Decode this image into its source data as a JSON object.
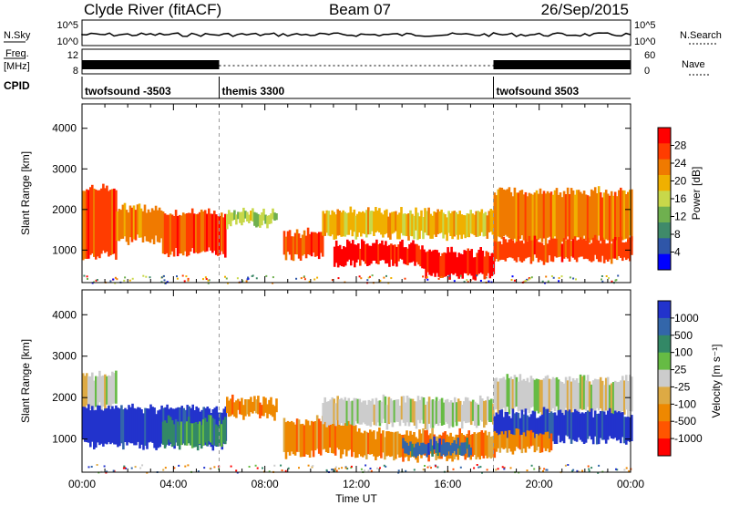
{
  "header": {
    "station": "Clyde River (fitACF)",
    "beam": "Beam 07",
    "date": "26/Sep/2015"
  },
  "status_panels": {
    "nsky_label": "N.Sky",
    "freq_label_top": "Freq.",
    "freq_label_unit": "[MHz]",
    "cpid_label": "CPID",
    "nsearch_label": "N.Search",
    "nave_label": "Nave",
    "noise_ticks": [
      "10^5",
      "10^0"
    ],
    "freq_ticks": [
      "12",
      "8"
    ],
    "nave_ticks": [
      "60",
      "0"
    ],
    "cpid_segments": [
      {
        "name": "twofsound -3503",
        "start_hour": 0,
        "end_hour": 6
      },
      {
        "name": "themis 3300",
        "start_hour": 6,
        "end_hour": 18
      },
      {
        "name": "twofsound 3503",
        "start_hour": 18,
        "end_hour": 24
      }
    ]
  },
  "colors": {
    "power_scale": [
      "#0000ff",
      "#2f56a8",
      "#3f8a6a",
      "#6fb04f",
      "#c8d84a",
      "#f0b000",
      "#f07a00",
      "#ff3c00",
      "#ff0000"
    ],
    "velocity_scale": [
      "#2233cc",
      "#3366aa",
      "#338866",
      "#66bb44",
      "#cccccc",
      "#ddaa44",
      "#ee8800",
      "#ff5500",
      "#ff0000"
    ]
  },
  "chart_data": [
    {
      "type": "heatmap",
      "name": "power",
      "ylabel": "Slant Range [km]",
      "xlabel": "",
      "xlim": [
        0,
        24
      ],
      "ylim": [
        200,
        4600
      ],
      "yticks": [
        "1000",
        "2000",
        "3000",
        "4000"
      ],
      "xticks": [
        "00:00",
        "04:00",
        "08:00",
        "12:00",
        "16:00",
        "20:00",
        "00:00"
      ],
      "colorbar_label": "Power [dB]",
      "colorbar_ticks": [
        "4",
        "8",
        "12",
        "16",
        "20",
        "24",
        "28"
      ],
      "bands": [
        {
          "x0": 0.0,
          "x1": 1.5,
          "y0": 800,
          "y1": 2600,
          "c": 7
        },
        {
          "x0": 1.5,
          "x1": 3.5,
          "y0": 1200,
          "y1": 2100,
          "c": 6
        },
        {
          "x0": 3.5,
          "x1": 6.3,
          "y0": 900,
          "y1": 2000,
          "c": 7
        },
        {
          "x0": 6.3,
          "x1": 8.5,
          "y0": 1600,
          "y1": 2000,
          "c": 4
        },
        {
          "x0": 8.8,
          "x1": 10.5,
          "y0": 800,
          "y1": 1500,
          "c": 7
        },
        {
          "x0": 10.5,
          "x1": 12.0,
          "y0": 1300,
          "y1": 2000,
          "c": 5
        },
        {
          "x0": 11.0,
          "x1": 15.0,
          "y0": 600,
          "y1": 1200,
          "c": 8
        },
        {
          "x0": 12.0,
          "x1": 18.0,
          "y0": 1300,
          "y1": 2000,
          "c": 5
        },
        {
          "x0": 15.0,
          "x1": 18.0,
          "y0": 300,
          "y1": 1000,
          "c": 8
        },
        {
          "x0": 18.0,
          "x1": 24.0,
          "y0": 1200,
          "y1": 2500,
          "c": 6
        },
        {
          "x0": 18.0,
          "x1": 24.0,
          "y0": 700,
          "y1": 1300,
          "c": 7
        }
      ]
    },
    {
      "type": "heatmap",
      "name": "velocity",
      "ylabel": "Slant Range [km]",
      "xlabel": "Time UT",
      "xlim": [
        0,
        24
      ],
      "ylim": [
        200,
        4600
      ],
      "yticks": [
        "1000",
        "2000",
        "3000",
        "4000"
      ],
      "xticks": [
        "00:00",
        "04:00",
        "08:00",
        "12:00",
        "16:00",
        "20:00",
        "00:00"
      ],
      "colorbar_label": "Velocity [m s⁻¹]",
      "colorbar_ticks": [
        "1000",
        "500",
        "100",
        "25",
        "-25",
        "-100",
        "-500",
        "-1000"
      ],
      "bands": [
        {
          "x0": 0.0,
          "x1": 1.5,
          "y0": 1700,
          "y1": 2600,
          "c": 4
        },
        {
          "x0": 0.0,
          "x1": 6.3,
          "y0": 800,
          "y1": 1800,
          "c": 0
        },
        {
          "x0": 3.5,
          "x1": 6.3,
          "y0": 800,
          "y1": 1500,
          "c": 2
        },
        {
          "x0": 6.3,
          "x1": 8.5,
          "y0": 1500,
          "y1": 2000,
          "c": 6
        },
        {
          "x0": 8.8,
          "x1": 12.0,
          "y0": 600,
          "y1": 1500,
          "c": 6
        },
        {
          "x0": 10.5,
          "x1": 18.0,
          "y0": 1300,
          "y1": 2000,
          "c": 4
        },
        {
          "x0": 12.0,
          "x1": 18.0,
          "y0": 500,
          "y1": 1200,
          "c": 6
        },
        {
          "x0": 14.0,
          "x1": 17.0,
          "y0": 600,
          "y1": 1000,
          "c": 1
        },
        {
          "x0": 18.0,
          "x1": 24.0,
          "y0": 1600,
          "y1": 2500,
          "c": 4
        },
        {
          "x0": 18.0,
          "x1": 24.0,
          "y0": 900,
          "y1": 1700,
          "c": 0
        },
        {
          "x0": 18.0,
          "x1": 20.5,
          "y0": 700,
          "y1": 1200,
          "c": 6
        }
      ]
    }
  ]
}
